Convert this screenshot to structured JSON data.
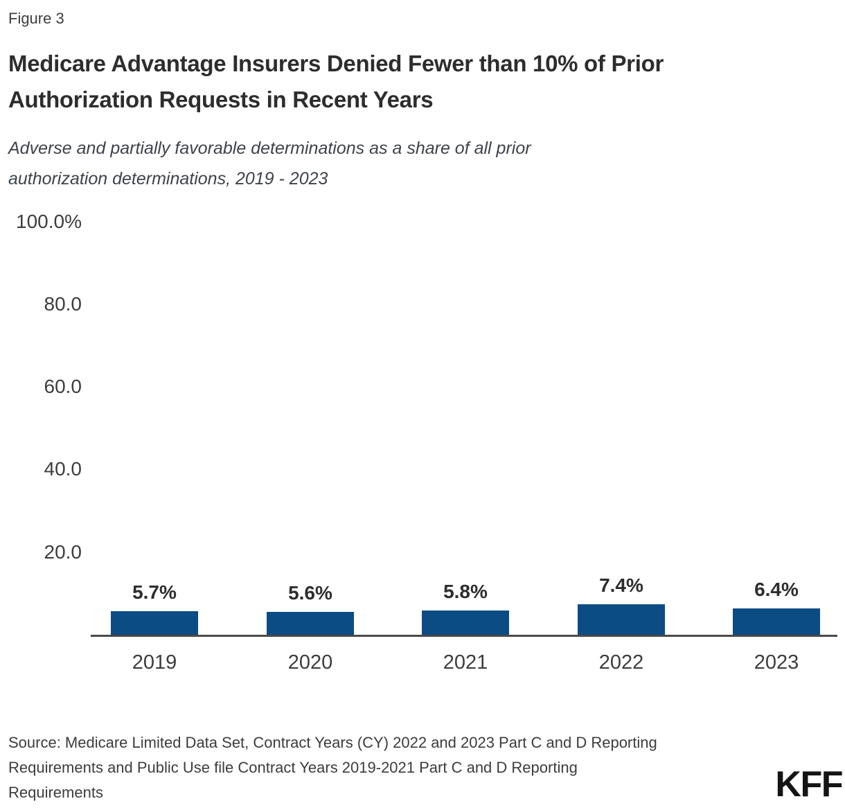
{
  "figure_label": "Figure 3",
  "header": {
    "title_lines": [
      "Medicare Advantage Insurers Denied Fewer than 10% of Prior",
      "Authorization Requests in Recent Years"
    ],
    "subtitle_lines": [
      "Adverse and partially favorable determinations as a share of all prior",
      "authorization determinations, 2019 - 2023"
    ]
  },
  "chart_data": {
    "type": "bar",
    "title": "Medicare Advantage Insurers Denied Fewer than 10% of Prior Authorization Requests in Recent Years",
    "subtitle": "Adverse and partially favorable determinations as a share of all prior authorization determinations, 2019 - 2023",
    "categories": [
      "2019",
      "2020",
      "2021",
      "2022",
      "2023"
    ],
    "values": [
      5.7,
      5.6,
      5.8,
      7.4,
      6.4
    ],
    "value_labels": [
      "5.7%",
      "5.6%",
      "5.8%",
      "7.4%",
      "6.4%"
    ],
    "xlabel": "",
    "ylabel": "",
    "ylim": [
      0,
      100
    ],
    "y_ticks": [
      {
        "value": 100,
        "label": "100.0%"
      },
      {
        "value": 80,
        "label": "80.0"
      },
      {
        "value": 60,
        "label": "60.0"
      },
      {
        "value": 40,
        "label": "40.0"
      },
      {
        "value": 20,
        "label": "20.0"
      }
    ],
    "grid": false,
    "legend": false,
    "bar_color": "#0C4C84",
    "axis_color": "#4a4a4a"
  },
  "footer": {
    "source_lines": [
      "Source: Medicare Limited Data Set, Contract Years (CY) 2022 and 2023 Part C and D Reporting",
      "Requirements and Public Use file Contract Years 2019-2021 Part C and D Reporting",
      "Requirements"
    ],
    "logo": "KFF"
  }
}
